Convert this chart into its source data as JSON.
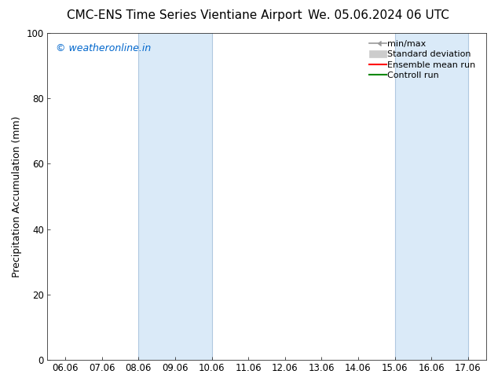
{
  "title_left": "CMC-ENS Time Series Vientiane Airport",
  "title_right": "We. 05.06.2024 06 UTC",
  "ylabel": "Precipitation Accumulation (mm)",
  "watermark": "© weatheronline.in",
  "watermark_color": "#0066cc",
  "ylim": [
    0,
    100
  ],
  "yticks": [
    0,
    20,
    40,
    60,
    80,
    100
  ],
  "xtick_labels": [
    "06.06",
    "07.06",
    "08.06",
    "09.06",
    "10.06",
    "11.06",
    "12.06",
    "13.06",
    "14.06",
    "15.06",
    "16.06",
    "17.06"
  ],
  "xtick_positions": [
    0,
    1,
    2,
    3,
    4,
    5,
    6,
    7,
    8,
    9,
    10,
    11
  ],
  "shaded_regions": [
    {
      "xmin": 2,
      "xmax": 4,
      "color": "#daeaf8"
    },
    {
      "xmin": 9,
      "xmax": 11,
      "color": "#daeaf8"
    }
  ],
  "shaded_border_color": "#b0c8e0",
  "bg_color": "#ffffff",
  "plot_bg_color": "#ffffff",
  "legend_labels": [
    "min/max",
    "Standard deviation",
    "Ensemble mean run",
    "Controll run"
  ],
  "minmax_color": "#999999",
  "stddev_color": "#cccccc",
  "ensemble_color": "#ff0000",
  "control_color": "#008800",
  "title_fontsize": 11,
  "axis_label_fontsize": 9,
  "tick_fontsize": 8.5,
  "legend_fontsize": 8,
  "watermark_fontsize": 9
}
